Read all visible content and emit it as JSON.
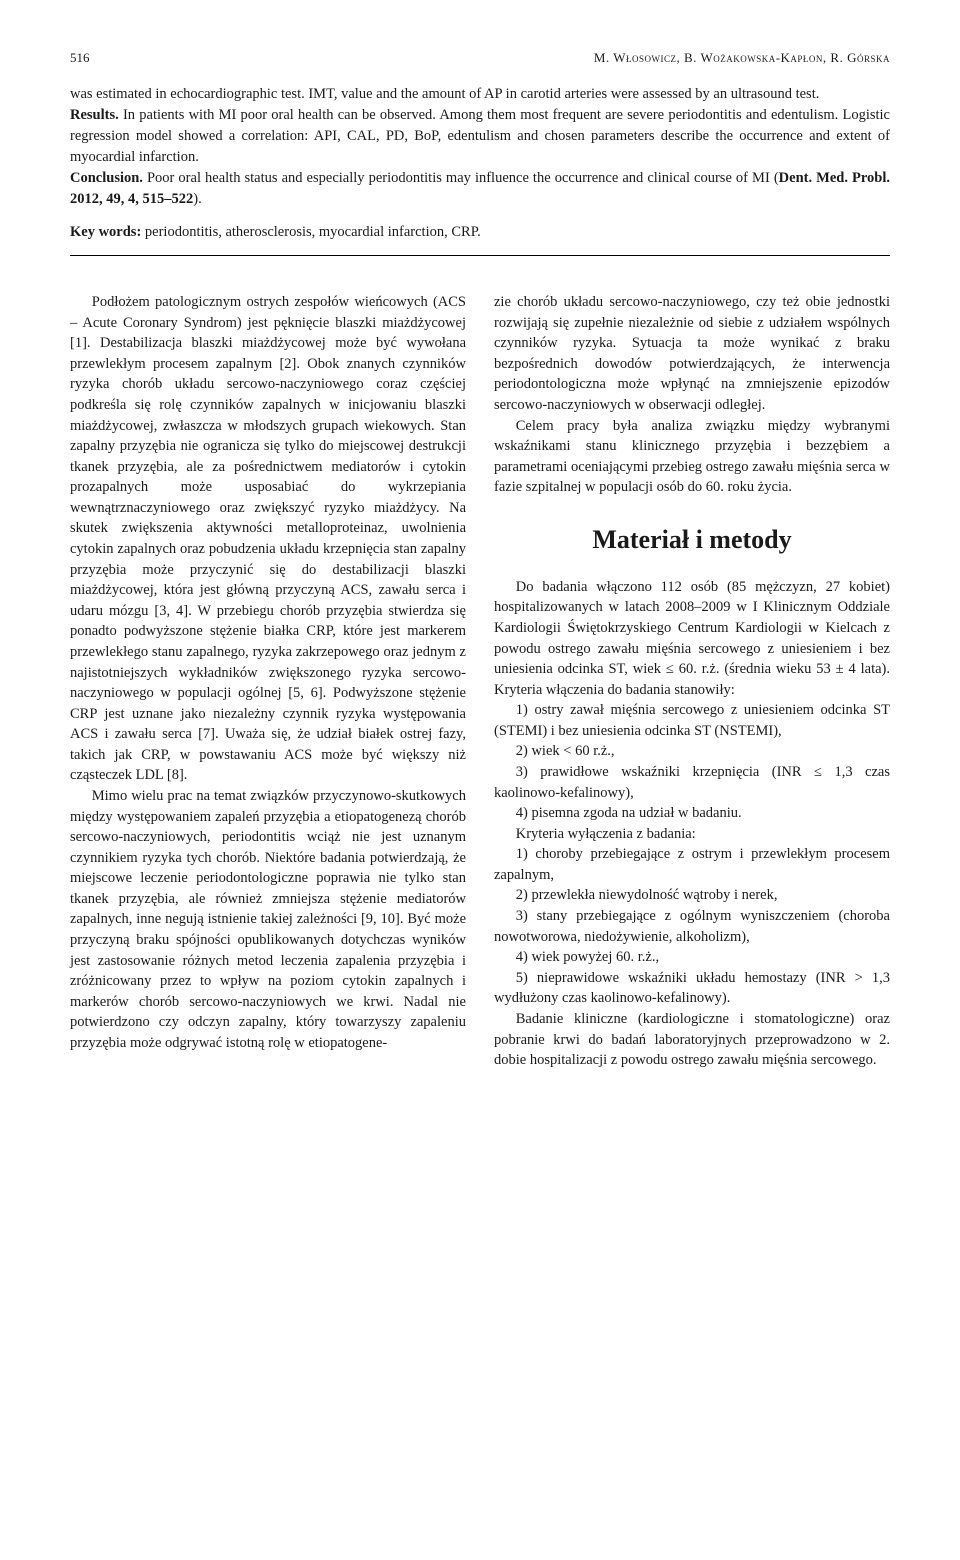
{
  "header": {
    "page_number": "516",
    "authors": "M. Włosowicz, B. Wożakowska-Kapłon, R. Górska"
  },
  "abstract": {
    "para1_pre": "was estimated in echocardiographic test. IMT, value and the amount of AP in carotid arteries were assessed by an ultrasound test.",
    "results_label": "Results.",
    "results_text": " In patients with MI poor oral health can be observed. Among them most frequent are severe periodontitis and edentulism. Logistic regression model showed a correlation: API, CAL, PD, BoP, edentulism and chosen parameters describe the occurrence and extent of myocardial infarction.",
    "conclusion_label": "Conclusion.",
    "conclusion_text": " Poor oral health status and especially periodontitis may influence the occurrence and clinical course of MI (",
    "citation_label": "Dent. Med. Probl. 2012, 49, 4, 515–522",
    "conclusion_end": ").",
    "keywords_label": "Key words:",
    "keywords_text": " periodontitis, atherosclerosis, myocardial infarction, CRP."
  },
  "left_col": {
    "p1": "Podłożem patologicznym ostrych zespołów wieńcowych (ACS – Acute Coronary Syndrom) jest pęknięcie blaszki miażdżycowej [1]. Destabilizacja blaszki miażdżycowej może być wywołana przewlekłym procesem zapalnym [2]. Obok znanych czynników ryzyka chorób układu sercowo-naczyniowego coraz częściej podkreśla się rolę czynników zapalnych w inicjowaniu blaszki miażdżycowej, zwłaszcza w młodszych grupach wiekowych. Stan zapalny przyzębia nie ogranicza się tylko do miejscowej destrukcji tkanek przyzębia, ale za pośrednictwem mediatorów i cytokin prozapalnych może usposabiać do wykrzepiania wewnątrznaczyniowego oraz zwiększyć ryzyko miażdżycy. Na skutek zwiększenia aktywności metalloproteinaz, uwolnienia cytokin zapalnych oraz pobudzenia układu krzepnięcia stan zapalny przyzębia może przyczynić się do destabilizacji blaszki miażdżycowej, która jest główną przyczyną ACS, zawału serca i udaru mózgu [3, 4]. W przebiegu chorób przyzębia stwierdza się ponadto podwyższone stężenie białka CRP, które jest markerem przewlekłego stanu zapalnego, ryzyka zakrzepowego oraz jednym z najistotniejszych wykładników zwiększonego ryzyka sercowo-naczyniowego w populacji ogólnej [5, 6]. Podwyższone stężenie CRP jest uznane jako niezależny czynnik ryzyka występowania ACS i zawału serca [7]. Uważa się, że udział białek ostrej fazy, takich jak CRP, w powstawaniu ACS może być większy niż cząsteczek LDL [8].",
    "p2": "Mimo wielu prac na temat związków przyczynowo-skutkowych między występowaniem zapaleń przyzębia a etiopatogenezą chorób sercowo-naczyniowych, periodontitis wciąż nie jest uznanym czynnikiem ryzyka tych chorób. Niektóre badania potwierdzają, że miejscowe leczenie periodontologiczne poprawia nie tylko stan tkanek przyzębia, ale również zmniejsza stężenie mediatorów zapalnych, inne negują istnienie takiej zależności [9, 10]. Być może przyczyną braku spójności opublikowanych dotychczas wyników jest zastosowanie różnych metod leczenia zapalenia przyzębia i zróżnicowany przez to wpływ na poziom cytokin zapalnych i markerów chorób sercowo-naczyniowych we krwi. Nadal nie potwierdzono czy odczyn zapalny, który towarzyszy zapaleniu przyzębia może odgrywać istotną rolę w etiopatogene-"
  },
  "right_col": {
    "p1": "zie chorób układu sercowo-naczyniowego, czy też obie jednostki rozwijają się zupełnie niezależnie od siebie z udziałem wspólnych czynników ryzyka. Sytuacja ta może wynikać z braku bezpośrednich dowodów potwierdzających, że interwencja periodontologiczna może wpłynąć na zmniejszenie epizodów sercowo-naczyniowych w obserwacji odległej.",
    "p2": "Celem pracy była analiza związku między wybranymi wskaźnikami stanu klinicznego przyzębia i bezzębiem a parametrami oceniającymi przebieg ostrego zawału mięśnia serca w fazie szpitalnej w populacji osób do 60. roku życia.",
    "section_title": "Materiał i metody",
    "p3": "Do badania włączono 112 osób (85 mężczyzn, 27 kobiet) hospitalizowanych w latach 2008–2009 w I Klinicznym Oddziale Kardiologii Świętokrzyskiego Centrum Kardiologii w Kielcach z powodu ostrego zawału mięśnia sercowego z uniesieniem i bez uniesienia odcinka ST, wiek ≤ 60. r.ż. (średnia wieku 53 ± 4 lata). Kryteria włączenia do badania stanowiły:",
    "l1": "1) ostry zawał mięśnia sercowego z uniesieniem odcinka ST (STEMI) i bez uniesienia odcinka ST (NSTEMI),",
    "l2": "2) wiek < 60 r.ż.,",
    "l3": "3) prawidłowe wskaźniki krzepnięcia (INR ≤ 1,3 czas kaolinowo-kefalinowy),",
    "l4": "4) pisemna zgoda na udział w badaniu.",
    "p4": "Kryteria wyłączenia z badania:",
    "l5": "1) choroby przebiegające z ostrym i przewlekłym procesem zapalnym,",
    "l6": "2) przewlekła niewydolność wątroby i nerek,",
    "l7": "3) stany przebiegające z ogólnym wyniszczeniem (choroba nowotworowa, niedożywienie, alkoholizm),",
    "l8": "4) wiek powyżej 60. r.ż.,",
    "l9": "5) nieprawidowe wskaźniki układu hemostazy (INR > 1,3 wydłużony czas kaolinowo-kefalinowy).",
    "p5": "Badanie kliniczne (kardiologiczne i stomatologiczne) oraz pobranie krwi do badań laboratoryjnych przeprowadzono w 2. dobie hospitalizacji z powodu ostrego zawału mięśnia sercowego."
  }
}
